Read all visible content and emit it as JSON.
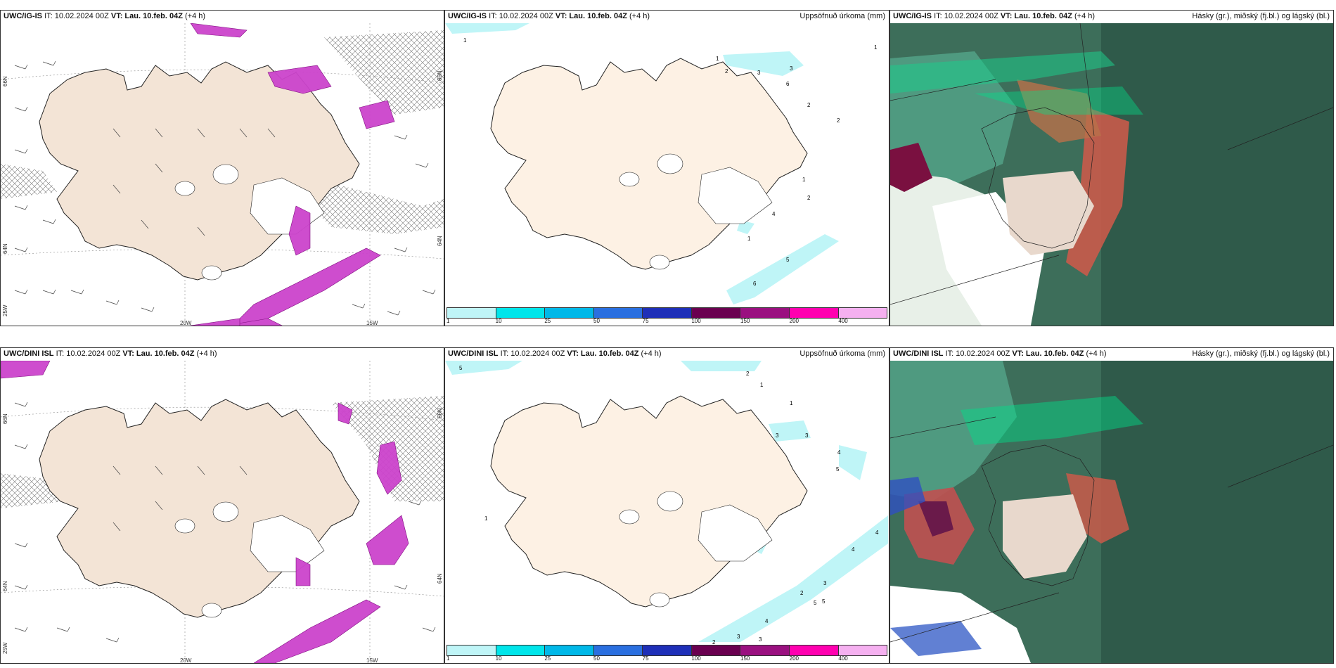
{
  "panels": {
    "top_left": {
      "source": "UWC/IG-IS",
      "it_label": "IT: 10.02.2024 00Z",
      "vt_label": "VT: Lau. 10.feb. 04Z",
      "lead": "(+4 h)",
      "axis": {
        "lon_20": "20W",
        "lon_15": "15W",
        "lon_25": "25W",
        "lat_66_left": "66N",
        "lat_64_left": "64N",
        "lat_66_right": "66N",
        "lat_64_right": "64N"
      }
    },
    "top_mid": {
      "source": "UWC/IG-IS",
      "it_label": "IT: 10.02.2024 00Z",
      "vt_label": "VT: Lau. 10.feb. 04Z",
      "lead": "(+4 h)",
      "field": "Uppsöfnuð úrkoma (mm)",
      "values": [
        "1",
        "1",
        "1",
        "2",
        "3",
        "3",
        "6",
        "2",
        "2",
        "1",
        "2",
        "4",
        "1",
        "5",
        "6"
      ]
    },
    "top_right": {
      "source": "UWC/IG-IS",
      "it_label": "IT: 10.02.2024 00Z",
      "vt_label": "VT: Lau. 10.feb. 04Z",
      "lead": "(+4 h)",
      "field": "Hásky (gr.), miðský (fj.bl.) og lágský (bl.)"
    },
    "bottom_left": {
      "source": "UWC/DINI ISL",
      "it_label": "IT: 10.02.2024 00Z",
      "vt_label": "VT: Lau. 10.feb. 04Z",
      "lead": "(+4 h)",
      "axis": {
        "lon_20": "20W",
        "lon_15": "15W",
        "lon_25": "25W",
        "lat_66_left": "66N",
        "lat_64_left": "64N",
        "lat_66_right": "66N",
        "lat_64_right": "64N"
      }
    },
    "bottom_mid": {
      "source": "UWC/DINI ISL",
      "it_label": "IT: 10.02.2024 00Z",
      "vt_label": "VT: Lau. 10.feb. 04Z",
      "lead": "(+4 h)",
      "field": "Uppsöfnuð úrkoma (mm)",
      "values": [
        "5",
        "2",
        "1",
        "1",
        "3",
        "3",
        "4",
        "5",
        "1",
        "4",
        "4",
        "3",
        "2",
        "5",
        "5",
        "4",
        "3",
        "3",
        "2"
      ]
    },
    "bottom_right": {
      "source": "UWC/DINI ISL",
      "it_label": "IT: 10.02.2024 00Z",
      "vt_label": "VT: Lau. 10.feb. 04Z",
      "lead": "(+4 h)",
      "field": "Hásky (gr.), miðský (fj.bl.) og lágský (bl.)"
    }
  },
  "precip_legend": {
    "ticks": [
      "1",
      "10",
      "25",
      "50",
      "75",
      "100",
      "150",
      "200",
      "400"
    ],
    "colors": [
      "#bff5f7",
      "#00e5ea",
      "#00b8e8",
      "#2a6fe0",
      "#1e2fb8",
      "#6a0050",
      "#9a1080",
      "#ff00b0",
      "#f5b0f0"
    ]
  },
  "colors": {
    "land": "#f3e4d6",
    "land_light": "#fdf1e4",
    "coast": "#222222",
    "cloud_high": "#3d8a5a",
    "cloud_mid": "#3aa88a",
    "cloud_low": "#1da888",
    "precip_pink": "#cc33cc"
  }
}
